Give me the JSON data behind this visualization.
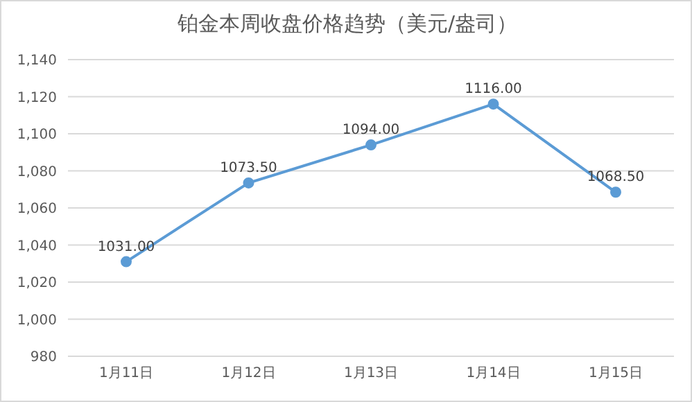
{
  "chart_data": {
    "type": "line",
    "title": "铂金本周收盘价格趋势（美元/盎司）",
    "categories": [
      "1月11日",
      "1月12日",
      "1月13日",
      "1月14日",
      "1月15日"
    ],
    "series": [
      {
        "color": "#5b9bd5",
        "values": [
          1031,
          1073.5,
          1094,
          1116,
          1068.5
        ],
        "value_labels": [
          "1031.00",
          "1073.50",
          "1094.00",
          "1116.00",
          "1068.50"
        ]
      }
    ],
    "ylim": [
      980,
      1140
    ],
    "yticks": [
      {
        "value": 980,
        "label": "980"
      },
      {
        "value": 1000,
        "label": "1,000"
      },
      {
        "value": 1020,
        "label": "1,020"
      },
      {
        "value": 1040,
        "label": "1,040"
      },
      {
        "value": 1060,
        "label": "1,060"
      },
      {
        "value": 1080,
        "label": "1,080"
      },
      {
        "value": 1100,
        "label": "1,100"
      },
      {
        "value": 1120,
        "label": "1,120"
      },
      {
        "value": 1140,
        "label": "1,140"
      }
    ],
    "grid": "y",
    "marker": "circle",
    "line_style": "solid",
    "legend": false
  }
}
